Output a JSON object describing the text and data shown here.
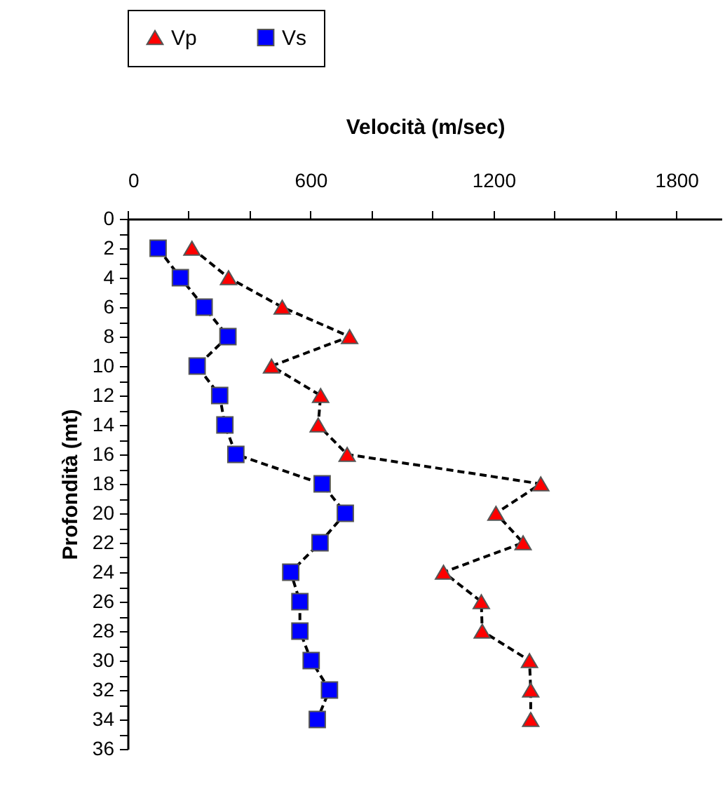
{
  "chart_data": {
    "type": "line",
    "xlabel": "Velocità (m/sec)",
    "ylabel": "Profondità (mt)",
    "x": [
      2,
      4,
      6,
      8,
      10,
      12,
      14,
      16,
      18,
      20,
      22,
      24,
      26,
      28,
      30,
      32,
      34
    ],
    "series": [
      {
        "name": "Vp",
        "color": "#ff0000",
        "marker": "triangle",
        "values": [
          211,
          331,
          507,
          728,
          472,
          633,
          625,
          720,
          1355,
          1208,
          1297,
          1036,
          1160,
          1163,
          1318,
          1322,
          1322
        ]
      },
      {
        "name": "Vs",
        "color": "#0000ff",
        "marker": "square",
        "values": [
          100,
          173,
          251,
          329,
          228,
          302,
          319,
          355,
          638,
          714,
          631,
          535,
          565,
          565,
          602,
          662,
          622
        ]
      }
    ],
    "orientation": "horizontal",
    "xlim": [
      0,
      1950
    ],
    "xticks": [
      0,
      {
        "value": 200,
        "label": null
      },
      {
        "value": 400,
        "label": null
      },
      600,
      {
        "value": 800,
        "label": null
      },
      {
        "value": 1000,
        "label": null
      },
      1200,
      {
        "value": 1400,
        "label": null
      },
      {
        "value": 1600,
        "label": null
      },
      1800
    ],
    "ylim": [
      36,
      0
    ],
    "yticks": [
      0,
      {
        "value": 1,
        "label": null
      },
      2,
      {
        "value": 3,
        "label": null
      },
      4,
      {
        "value": 5,
        "label": null
      },
      6,
      {
        "value": 7,
        "label": null
      },
      8,
      {
        "value": 9,
        "label": null
      },
      10,
      {
        "value": 11,
        "label": null
      },
      12,
      {
        "value": 13,
        "label": null
      },
      14,
      {
        "value": 15,
        "label": null
      },
      16,
      {
        "value": 17,
        "label": null
      },
      18,
      {
        "value": 19,
        "label": null
      },
      20,
      {
        "value": 21,
        "label": null
      },
      22,
      {
        "value": 23,
        "label": null
      },
      24,
      {
        "value": 25,
        "label": null
      },
      26,
      {
        "value": 27,
        "label": null
      },
      28,
      {
        "value": 29,
        "label": null
      },
      30,
      {
        "value": 31,
        "label": null
      },
      32,
      {
        "value": 33,
        "label": null
      },
      34,
      {
        "value": 35,
        "label": null
      },
      36
    ],
    "grid": false,
    "legend": "top",
    "line_style": "dashed"
  }
}
